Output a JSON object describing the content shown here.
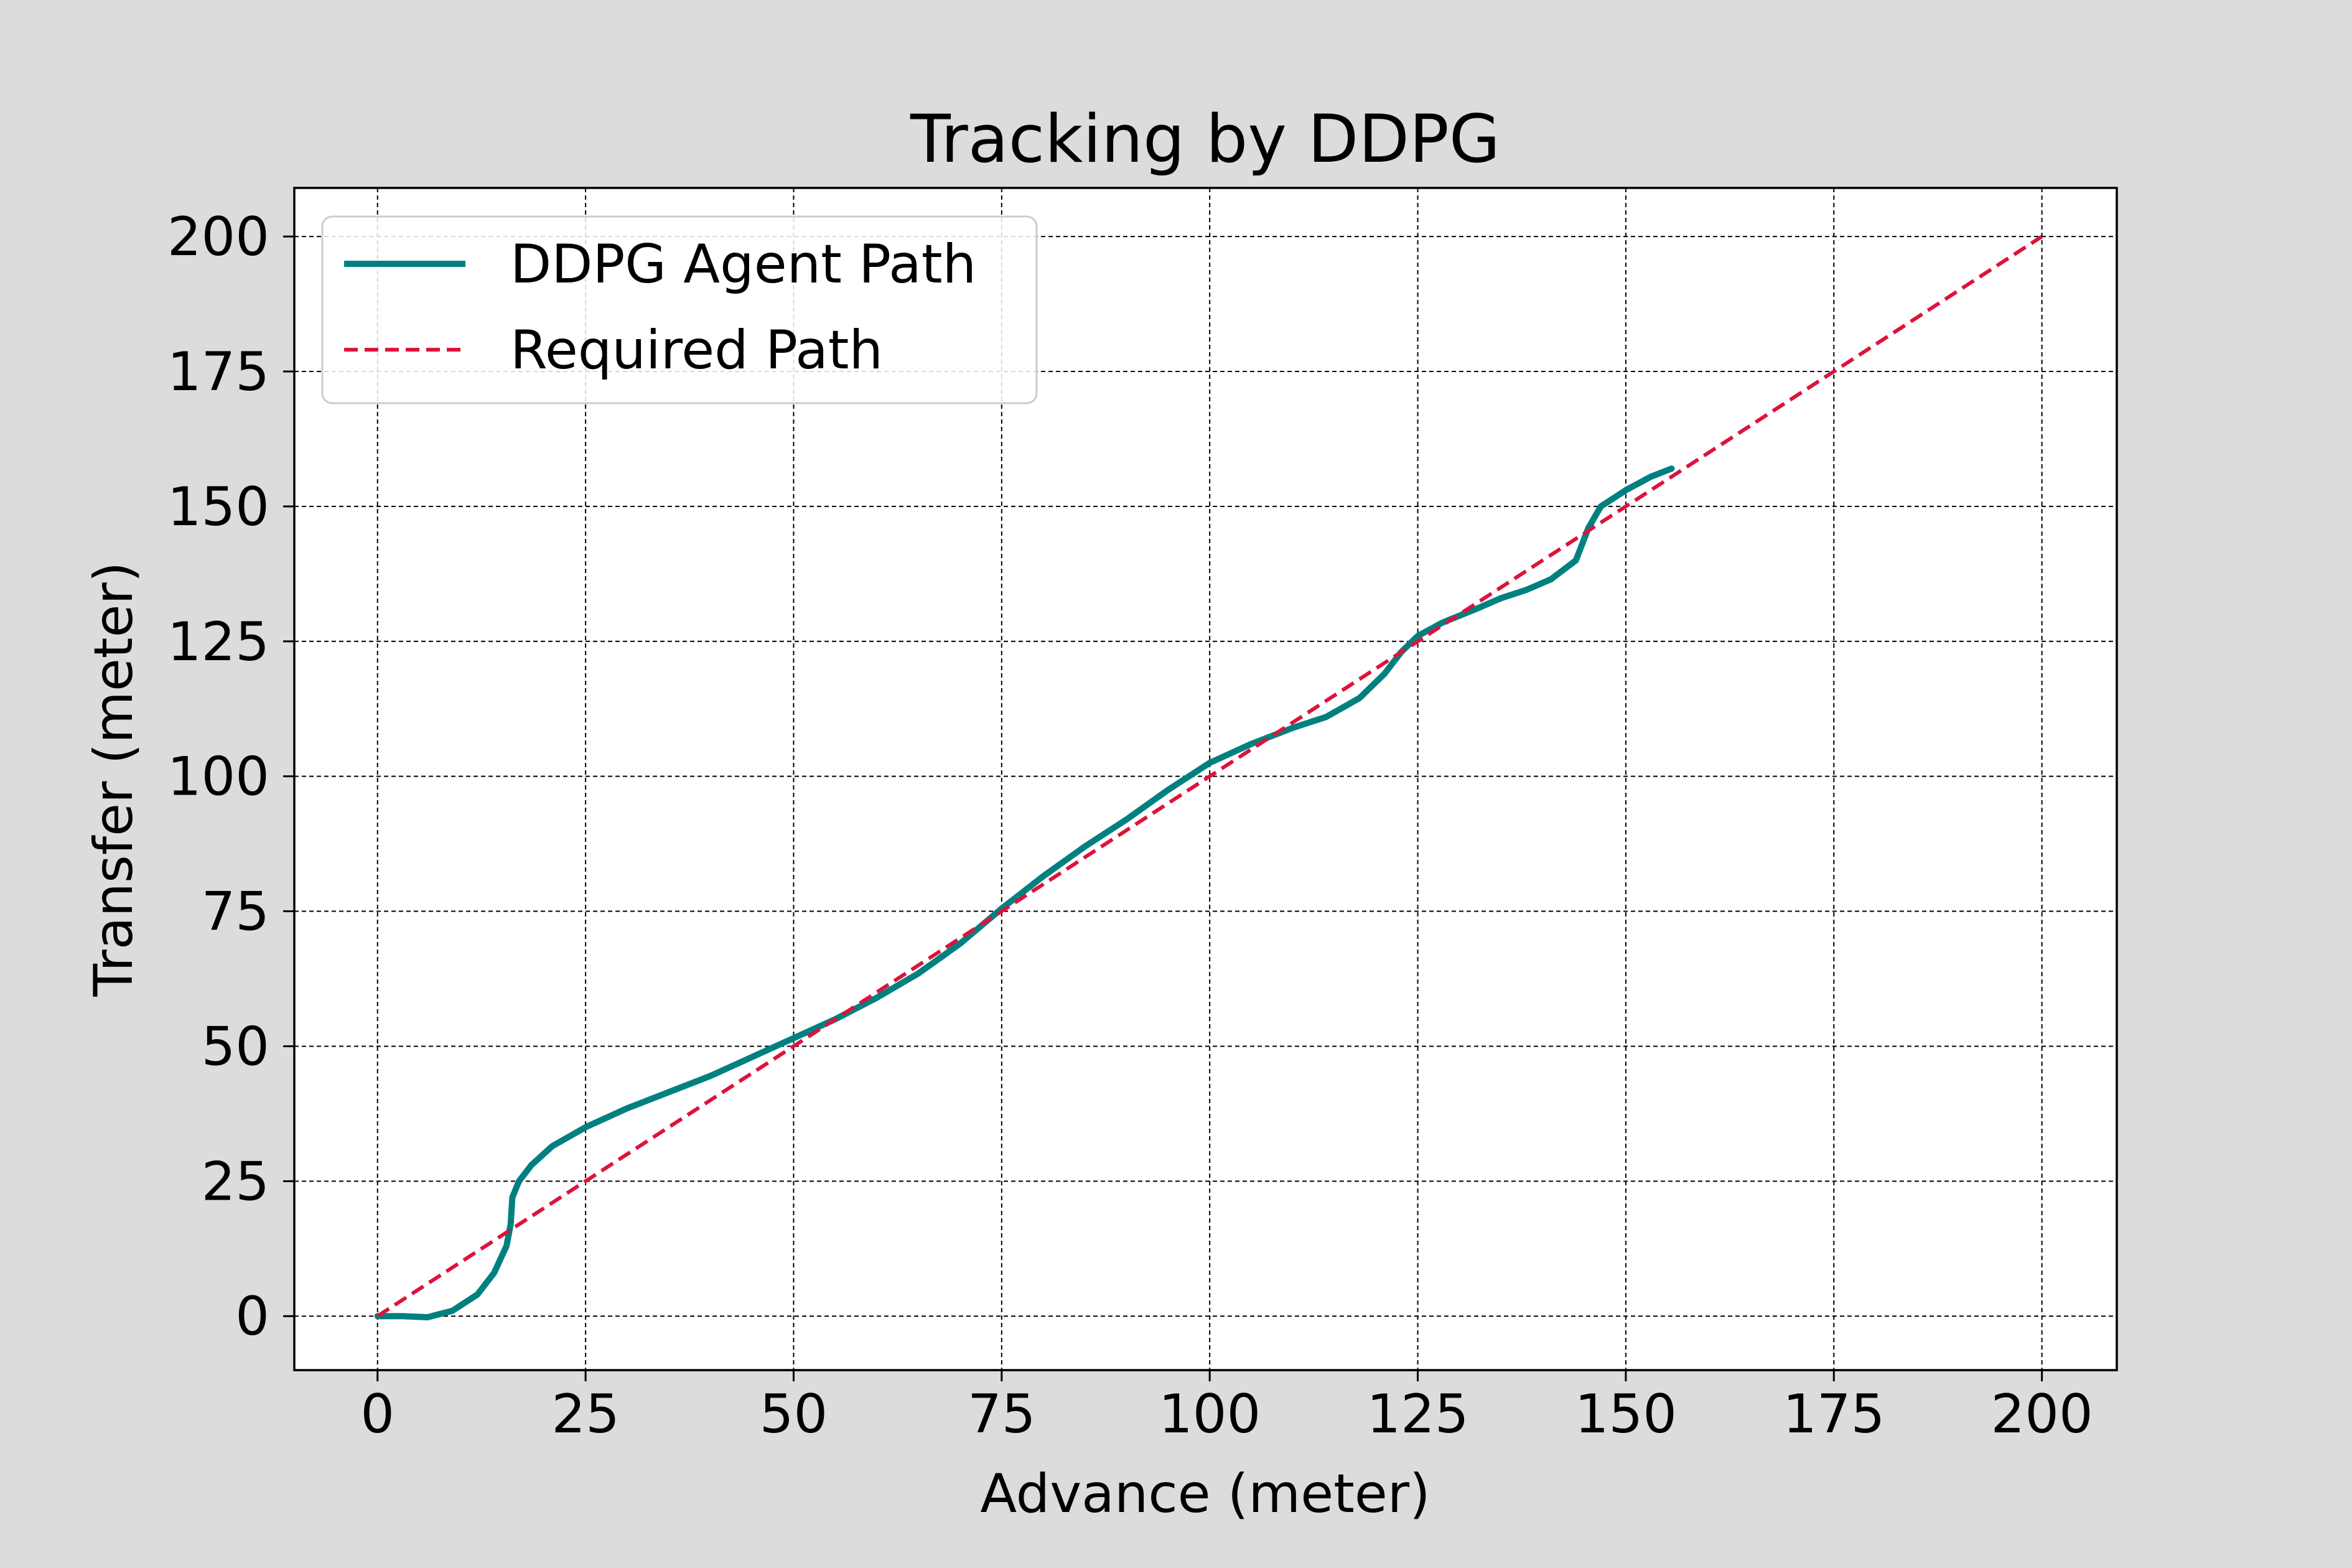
{
  "chart_data": {
    "type": "line",
    "title": "Tracking by DDPG",
    "xlabel": "Advance (meter)",
    "ylabel": "Transfer (meter)",
    "xlim": [
      -10,
      209
    ],
    "ylim": [
      -10,
      209
    ],
    "xticks": [
      0,
      25,
      50,
      75,
      100,
      125,
      150,
      175,
      200
    ],
    "yticks": [
      0,
      25,
      50,
      75,
      100,
      125,
      150,
      175,
      200
    ],
    "grid": true,
    "legend_position": "upper-left",
    "series": [
      {
        "name": "DDPG Agent Path",
        "color": "#008080",
        "style": "solid",
        "points": [
          [
            0,
            0
          ],
          [
            3,
            0
          ],
          [
            6,
            -0.2
          ],
          [
            9,
            1
          ],
          [
            12,
            4
          ],
          [
            14,
            8
          ],
          [
            15.5,
            13
          ],
          [
            16,
            17
          ],
          [
            16.2,
            22
          ],
          [
            17,
            25
          ],
          [
            18.5,
            28
          ],
          [
            21,
            31.5
          ],
          [
            25,
            35
          ],
          [
            30,
            38.5
          ],
          [
            35,
            41.5
          ],
          [
            40,
            44.5
          ],
          [
            45,
            48
          ],
          [
            50,
            51.5
          ],
          [
            55,
            55
          ],
          [
            60,
            59
          ],
          [
            65,
            63.5
          ],
          [
            70,
            69
          ],
          [
            75,
            75.5
          ],
          [
            80,
            81.5
          ],
          [
            85,
            87
          ],
          [
            90,
            92
          ],
          [
            95,
            97.5
          ],
          [
            100,
            102.5
          ],
          [
            105,
            106
          ],
          [
            110,
            109
          ],
          [
            114,
            111
          ],
          [
            118,
            114.5
          ],
          [
            121,
            119
          ],
          [
            123,
            123
          ],
          [
            125,
            126
          ],
          [
            128,
            128.5
          ],
          [
            132,
            131
          ],
          [
            135,
            133
          ],
          [
            138,
            134.5
          ],
          [
            141,
            136.5
          ],
          [
            144,
            140
          ],
          [
            145.5,
            146
          ],
          [
            147,
            150
          ],
          [
            150,
            153
          ],
          [
            153,
            155.5
          ],
          [
            155.5,
            157
          ]
        ]
      },
      {
        "name": "Required Path",
        "color": "#dc143c",
        "style": "dashed",
        "points": [
          [
            0,
            0
          ],
          [
            200,
            200
          ]
        ]
      }
    ]
  }
}
